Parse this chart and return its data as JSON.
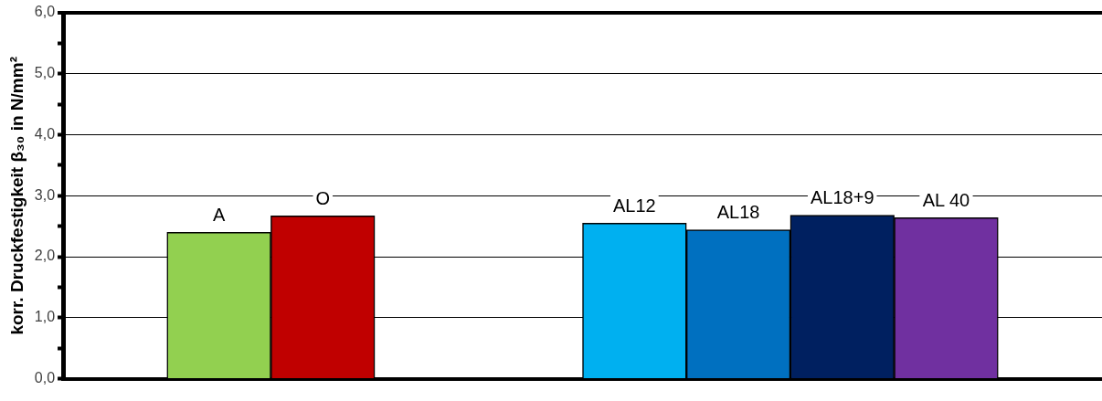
{
  "chart_data": {
    "type": "bar",
    "ylabel": "korr. Druckfestigkeit β₃₀ in N/mm²",
    "categories": [
      null,
      null,
      null,
      null,
      null,
      null,
      null,
      null,
      null,
      null
    ],
    "series": [
      {
        "name": "A",
        "color": "#92d050",
        "values": [
          null,
          2.4,
          null,
          null,
          null,
          null,
          null,
          null,
          null,
          null
        ]
      },
      {
        "name": "O",
        "color": "#c00000",
        "values": [
          null,
          null,
          2.67,
          null,
          null,
          null,
          null,
          null,
          null,
          null
        ]
      },
      {
        "name": "AL12",
        "color": "#00b0f0",
        "values": [
          null,
          null,
          null,
          null,
          null,
          2.55,
          null,
          null,
          null,
          null
        ]
      },
      {
        "name": "AL18",
        "color": "#0070c0",
        "values": [
          null,
          null,
          null,
          null,
          null,
          null,
          2.44,
          null,
          null,
          null
        ]
      },
      {
        "name": "AL18+9",
        "color": "#002060",
        "values": [
          null,
          null,
          null,
          null,
          null,
          null,
          null,
          2.68,
          null,
          null
        ]
      },
      {
        "name": "AL 40",
        "color": "#7030a0",
        "values": [
          null,
          null,
          null,
          null,
          null,
          null,
          null,
          null,
          2.64,
          null
        ]
      }
    ],
    "ylim": [
      0,
      6
    ],
    "yticks": [
      {
        "value": 0,
        "label": "0,0"
      },
      {
        "value": 0.5,
        "label": null
      },
      {
        "value": 1,
        "label": "1,0"
      },
      {
        "value": 1.5,
        "label": null
      },
      {
        "value": 2,
        "label": "2,0"
      },
      {
        "value": 2.5,
        "label": null
      },
      {
        "value": 3,
        "label": "3,0"
      },
      {
        "value": 3.5,
        "label": null
      },
      {
        "value": 4,
        "label": "4,0"
      },
      {
        "value": 4.5,
        "label": null
      },
      {
        "value": 5,
        "label": "5,0"
      },
      {
        "value": 5.5,
        "label": null
      },
      {
        "value": 6,
        "label": "6,0"
      }
    ],
    "grid": "y",
    "legend": false
  }
}
